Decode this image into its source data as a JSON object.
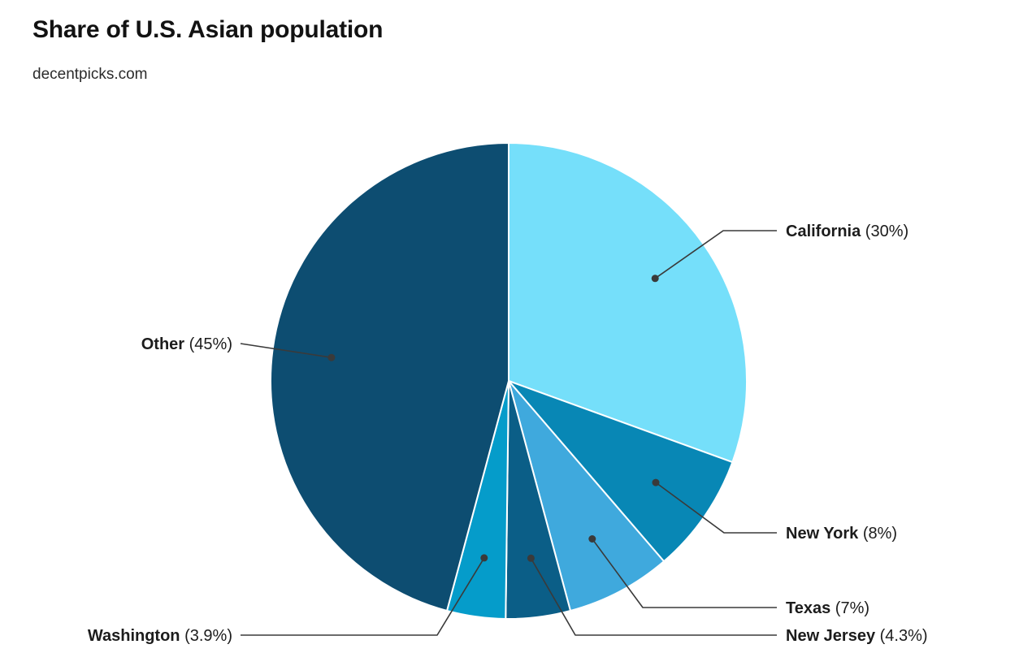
{
  "header": {
    "title": "Share of U.S. Asian population",
    "subtitle": "decentpicks.com"
  },
  "chart_data": {
    "type": "pie",
    "title": "Share of U.S. Asian population",
    "subtitle": "decentpicks.com",
    "categories": [
      "California",
      "New York",
      "Texas",
      "New Jersey",
      "Washington",
      "Other"
    ],
    "values": [
      30,
      8,
      7,
      4.3,
      3.9,
      45
    ],
    "value_display": [
      "(30%)",
      "(8%)",
      "(7%)",
      "(4.3%)",
      "(3.9%)",
      "(45%)"
    ],
    "colors": [
      "#75DFFA",
      "#0887B5",
      "#3FA9DD",
      "#0B5E87",
      "#059CCA",
      "#0D4D71"
    ],
    "start_angle_deg": 0,
    "direction": "clockwise",
    "label_style": "outside-callout",
    "leader_line_color": "#3a3a3a",
    "label_color": "#1c1c1c",
    "background": "#ffffff"
  }
}
